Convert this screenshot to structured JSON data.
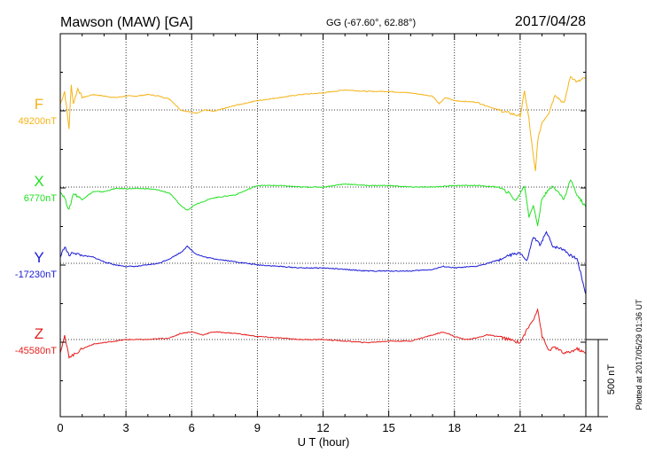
{
  "header": {
    "station": "Mawson (MAW)  [GA]",
    "coords": "GG (-67.60°,  62.88°)",
    "date": "2017/04/28"
  },
  "footnote": "Plotted at 2017/05/29 01:36 UT",
  "scale_bar_label": "500 nT",
  "chart_data": {
    "type": "line",
    "title": "Mawson (MAW)  [GA]",
    "xlabel": "U T (hour)",
    "ylabel": "",
    "xlim": [
      0,
      24
    ],
    "xticks": [
      "0",
      "3",
      "6",
      "9",
      "12",
      "15",
      "18",
      "21",
      "24"
    ],
    "grid": true,
    "unit": "nT",
    "scale_bar_nT": 500,
    "series": [
      {
        "name": "F",
        "color": "#f5b316",
        "baseline_label": "49200nT",
        "baseline": 49200,
        "x": [
          0,
          0.2,
          0.4,
          0.5,
          0.6,
          0.8,
          1.0,
          1.5,
          2,
          2.5,
          3,
          3.5,
          4,
          4.5,
          5,
          5.5,
          5.8,
          6.2,
          6.6,
          7,
          8,
          9,
          10,
          11,
          12,
          13,
          14,
          15,
          16,
          16.5,
          17,
          17.3,
          17.6,
          18,
          19,
          20,
          20.5,
          21,
          21.2,
          21.4,
          21.6,
          21.7,
          21.8,
          22,
          22.3,
          22.6,
          23,
          23.3,
          23.6,
          24
        ],
        "values": [
          49240,
          49320,
          49080,
          49360,
          49240,
          49340,
          49280,
          49300,
          49290,
          49280,
          49290,
          49290,
          49300,
          49290,
          49270,
          49200,
          49190,
          49180,
          49200,
          49190,
          49230,
          49260,
          49280,
          49300,
          49310,
          49330,
          49320,
          49320,
          49310,
          49300,
          49290,
          49240,
          49280,
          49260,
          49250,
          49200,
          49180,
          49160,
          49320,
          49140,
          48900,
          48800,
          49000,
          49120,
          49180,
          49300,
          49240,
          49420,
          49380,
          49410
        ]
      },
      {
        "name": "X",
        "color": "#22e022",
        "baseline_label": "6770nT",
        "baseline": 6770,
        "x": [
          0,
          0.2,
          0.4,
          0.6,
          1,
          1.5,
          2,
          2.5,
          3,
          3.5,
          4,
          4.5,
          5,
          5.5,
          5.8,
          6.2,
          7,
          8,
          8.5,
          9,
          10,
          11,
          12,
          13,
          14,
          15,
          16,
          17,
          18,
          19,
          20,
          20.5,
          20.8,
          21.2,
          21.4,
          21.6,
          21.8,
          22,
          22.5,
          23,
          23.3,
          23.6,
          24
        ],
        "values": [
          6740,
          6700,
          6620,
          6730,
          6690,
          6740,
          6740,
          6760,
          6760,
          6760,
          6760,
          6750,
          6730,
          6650,
          6620,
          6660,
          6700,
          6720,
          6750,
          6780,
          6780,
          6770,
          6770,
          6790,
          6780,
          6780,
          6770,
          6770,
          6780,
          6780,
          6770,
          6730,
          6680,
          6780,
          6580,
          6650,
          6520,
          6700,
          6780,
          6690,
          6820,
          6720,
          6640
        ]
      },
      {
        "name": "Y",
        "color": "#1a1ad6",
        "baseline_label": "-17230nT",
        "baseline": -17230,
        "x": [
          0,
          0.2,
          0.4,
          0.6,
          1,
          1.5,
          2,
          2.5,
          3,
          3.5,
          4,
          4.5,
          5,
          5.5,
          5.8,
          6.2,
          6.6,
          7,
          8,
          9,
          10,
          11,
          12,
          13,
          14,
          15,
          16,
          17,
          17.5,
          18,
          19,
          19.5,
          20,
          20.5,
          21,
          21.3,
          21.6,
          21.9,
          22.2,
          22.5,
          23,
          23.3,
          23.6,
          24
        ],
        "values": [
          -17190,
          -17120,
          -17180,
          -17160,
          -17180,
          -17190,
          -17220,
          -17240,
          -17250,
          -17250,
          -17240,
          -17230,
          -17200,
          -17160,
          -17120,
          -17170,
          -17190,
          -17200,
          -17220,
          -17240,
          -17250,
          -17260,
          -17260,
          -17270,
          -17280,
          -17280,
          -17280,
          -17270,
          -17250,
          -17260,
          -17250,
          -17230,
          -17210,
          -17180,
          -17160,
          -17220,
          -17060,
          -17110,
          -17030,
          -17120,
          -17140,
          -17180,
          -17200,
          -17430
        ]
      },
      {
        "name": "Z",
        "color": "#e61e1e",
        "baseline_label": "-45580nT",
        "baseline": -45580,
        "x": [
          0,
          0.2,
          0.4,
          0.6,
          1,
          1.5,
          2,
          2.5,
          3,
          4,
          5,
          5.5,
          6,
          6.5,
          7,
          8,
          9,
          10,
          11,
          12,
          13,
          14,
          15,
          16,
          16.5,
          17,
          17.5,
          18,
          18.5,
          19,
          19.5,
          20,
          20.5,
          21,
          21.3,
          21.6,
          21.8,
          22,
          22.3,
          22.6,
          23,
          23.3,
          23.6,
          24
        ],
        "values": [
          -45660,
          -45560,
          -45690,
          -45680,
          -45640,
          -45610,
          -45600,
          -45590,
          -45580,
          -45580,
          -45570,
          -45540,
          -45530,
          -45550,
          -45530,
          -45540,
          -45560,
          -45570,
          -45580,
          -45580,
          -45590,
          -45600,
          -45590,
          -45590,
          -45570,
          -45550,
          -45530,
          -45560,
          -45580,
          -45570,
          -45550,
          -45560,
          -45580,
          -45600,
          -45520,
          -45450,
          -45380,
          -45560,
          -45650,
          -45630,
          -45670,
          -45660,
          -45640,
          -45670
        ]
      }
    ]
  }
}
